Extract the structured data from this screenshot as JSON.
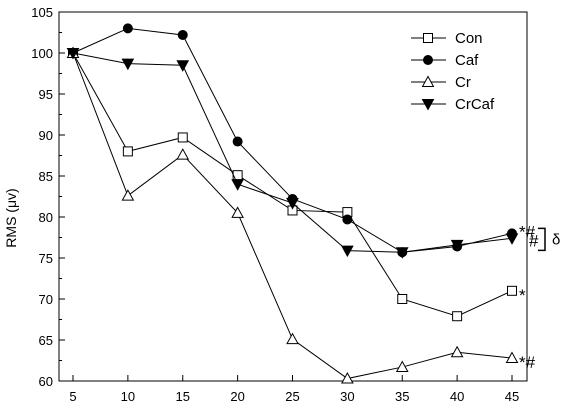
{
  "chart_data": {
    "type": "line",
    "title": "",
    "xlabel": "",
    "ylabel": "RMS (μv)",
    "xlim": [
      5,
      45
    ],
    "ylim": [
      60,
      105
    ],
    "x_ticks": [
      5,
      10,
      15,
      20,
      25,
      30,
      35,
      40,
      45
    ],
    "y_ticks": [
      60,
      65,
      70,
      75,
      80,
      85,
      90,
      95,
      100,
      105
    ],
    "grid": false,
    "legend_position": "top-right",
    "x": [
      5,
      10,
      15,
      20,
      25,
      30,
      35,
      40,
      45
    ],
    "series": [
      {
        "name": "Con",
        "marker": "open-square",
        "values": [
          100,
          88.0,
          89.7,
          85.1,
          80.8,
          80.6,
          70.0,
          67.9,
          71.0
        ]
      },
      {
        "name": "Caf",
        "marker": "filled-circle",
        "values": [
          100,
          103.0,
          102.2,
          89.2,
          82.2,
          79.7,
          75.7,
          76.4,
          78.0
        ]
      },
      {
        "name": "Cr",
        "marker": "open-triangle",
        "values": [
          100,
          82.6,
          87.6,
          80.5,
          65.1,
          60.3,
          61.7,
          63.5,
          62.8
        ]
      },
      {
        "name": "CrCaf",
        "marker": "filled-triangle-down",
        "values": [
          100,
          98.7,
          98.5,
          84.0,
          81.7,
          75.9,
          75.7,
          76.6,
          77.4
        ]
      }
    ],
    "annotations": [
      {
        "text": "*#",
        "near": "Caf at 45"
      },
      {
        "text": "#",
        "near": "CrCaf at 45"
      },
      {
        "text": "δ",
        "near": "bracket spanning Caf and CrCaf at 45"
      },
      {
        "text": "*",
        "near": "Con at 45"
      },
      {
        "text": "*#",
        "near": "Cr at 45"
      }
    ]
  }
}
